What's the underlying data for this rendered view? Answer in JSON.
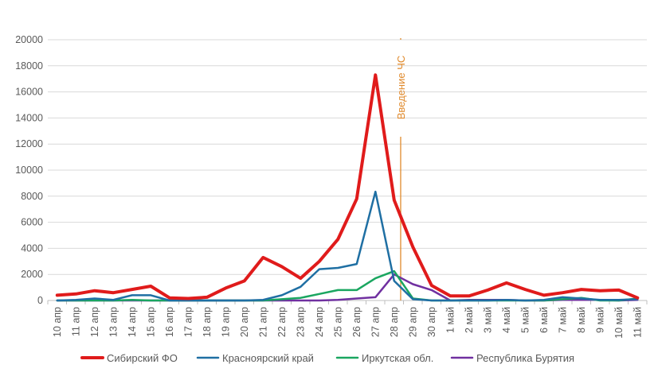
{
  "chart_data": {
    "type": "line",
    "title": "",
    "xlabel": "",
    "ylabel": "",
    "ylim": [
      0,
      20000
    ],
    "yticks": [
      0,
      2000,
      4000,
      6000,
      8000,
      10000,
      12000,
      14000,
      16000,
      18000,
      20000
    ],
    "grid": true,
    "legend_position": "bottom",
    "categories": [
      "10 апр",
      "11 апр",
      "12 апр",
      "13 апр",
      "14 апр",
      "15 апр",
      "16 апр",
      "17 апр",
      "18 апр",
      "19 апр",
      "20 апр",
      "21 апр",
      "22 апр",
      "23 апр",
      "24 апр",
      "25 апр",
      "26 апр",
      "27 апр",
      "28 апр",
      "29 апр",
      "30 апр",
      "1 май",
      "2 май",
      "3 май",
      "4 май",
      "5 май",
      "6 май",
      "7 май",
      "8 май",
      "9 май",
      "10 май",
      "11 май"
    ],
    "series": [
      {
        "name": "Сибирский ФО",
        "color": "#e01b1b",
        "width": 4,
        "values": [
          400,
          500,
          750,
          600,
          850,
          1100,
          200,
          150,
          250,
          950,
          1500,
          3300,
          2600,
          1700,
          3000,
          4700,
          7800,
          17300,
          7700,
          4100,
          1150,
          350,
          350,
          800,
          1350,
          850,
          400,
          600,
          850,
          750,
          800,
          200
        ]
      },
      {
        "name": "Красноярский край",
        "color": "#1f6fa3",
        "width": 2.5,
        "values": [
          0,
          50,
          150,
          50,
          400,
          400,
          0,
          0,
          0,
          0,
          0,
          50,
          400,
          1050,
          2400,
          2500,
          2800,
          8350,
          1500,
          100,
          0,
          0,
          0,
          0,
          50,
          0,
          50,
          250,
          150,
          50,
          50,
          100
        ]
      },
      {
        "name": "Иркутская обл.",
        "color": "#1aa660",
        "width": 2.5,
        "values": [
          0,
          0,
          0,
          0,
          50,
          0,
          0,
          0,
          0,
          0,
          0,
          0,
          100,
          200,
          500,
          800,
          800,
          1700,
          2250,
          150,
          0,
          0,
          0,
          0,
          0,
          0,
          0,
          100,
          200,
          0,
          0,
          150
        ]
      },
      {
        "name": "Республика Бурятия",
        "color": "#7030a0",
        "width": 2.5,
        "values": [
          0,
          0,
          0,
          0,
          0,
          0,
          0,
          0,
          0,
          0,
          0,
          0,
          0,
          0,
          0,
          50,
          150,
          250,
          2000,
          1250,
          800,
          0,
          50,
          50,
          50,
          0,
          0,
          50,
          50,
          50,
          0,
          50
        ]
      }
    ],
    "annotation": {
      "label": "Введение ЧС",
      "x_index": 18.35,
      "color": "#e08a2c"
    }
  }
}
